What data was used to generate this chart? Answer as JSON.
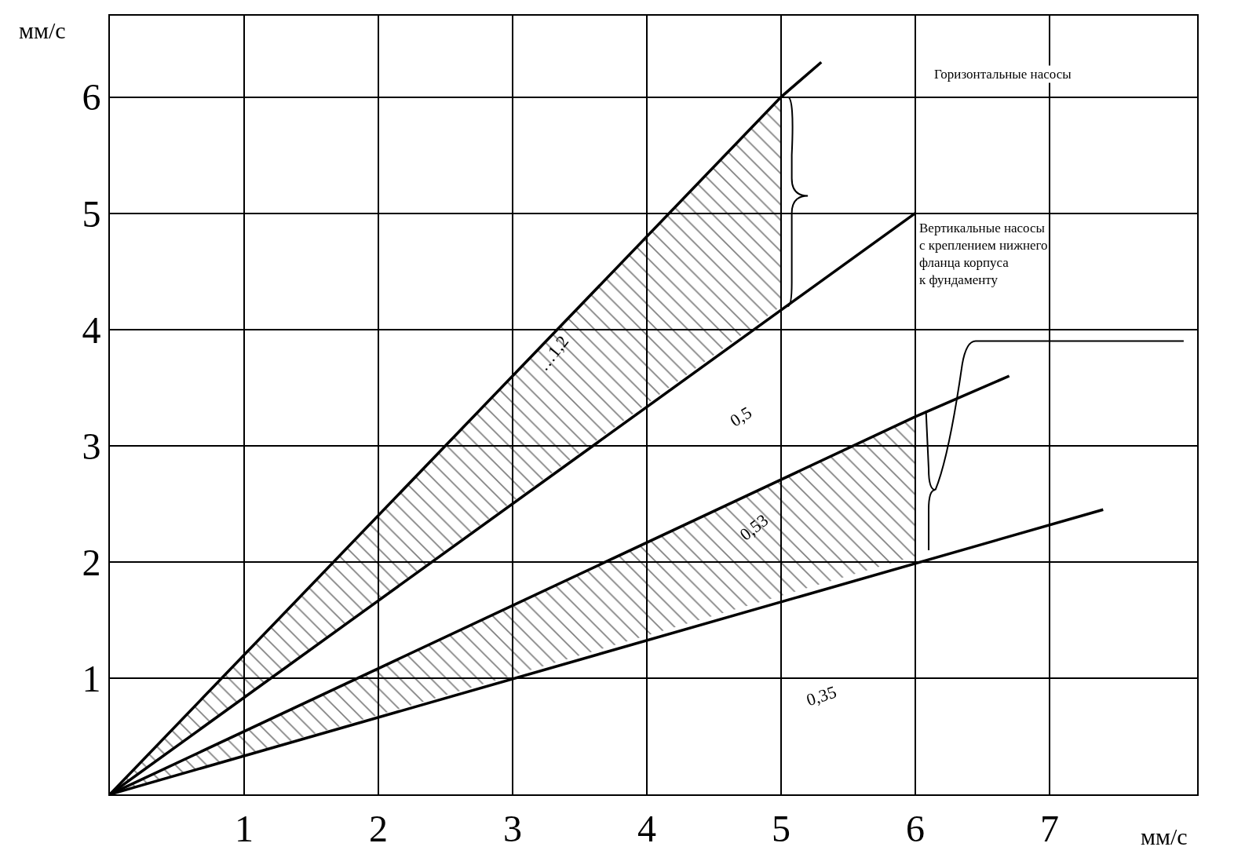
{
  "chart_data": {
    "type": "line",
    "xlabel": "мм/с",
    "ylabel": "мм/с",
    "xlim": [
      0,
      8.1
    ],
    "ylim": [
      0,
      6.7
    ],
    "xticks": [
      1,
      2,
      3,
      4,
      5,
      6,
      7
    ],
    "yticks": [
      1,
      2,
      3,
      4,
      5,
      6
    ],
    "grid": true,
    "marker": "none",
    "line_style": "solid",
    "series": [
      {
        "color": "#000000",
        "x": [
          0,
          5,
          5.3
        ],
        "values": [
          0,
          6,
          6.3
        ],
        "lower": [
          0,
          4.2,
          null
        ],
        "upper": [
          0,
          6,
          null
        ]
      },
      {
        "color": "#000000",
        "x": [
          0,
          6
        ],
        "values": [
          0,
          5
        ]
      },
      {
        "color": "#000000",
        "x": [
          0,
          6,
          6.7
        ],
        "values": [
          0,
          3.25,
          3.6
        ],
        "lower": [
          0,
          2.05,
          null
        ],
        "upper": [
          0,
          3.25,
          null
        ]
      },
      {
        "color": "#000000",
        "x": [
          0,
          7.4
        ],
        "values": [
          0,
          2.45
        ]
      }
    ],
    "annotations": [
      "…1,2",
      "0,5",
      "0,53",
      "0,35",
      "Горизонтальные насосы",
      "Вертикальные насосы\nс креплением нижнего\nфланца корпуса\nк фундаменту"
    ]
  }
}
